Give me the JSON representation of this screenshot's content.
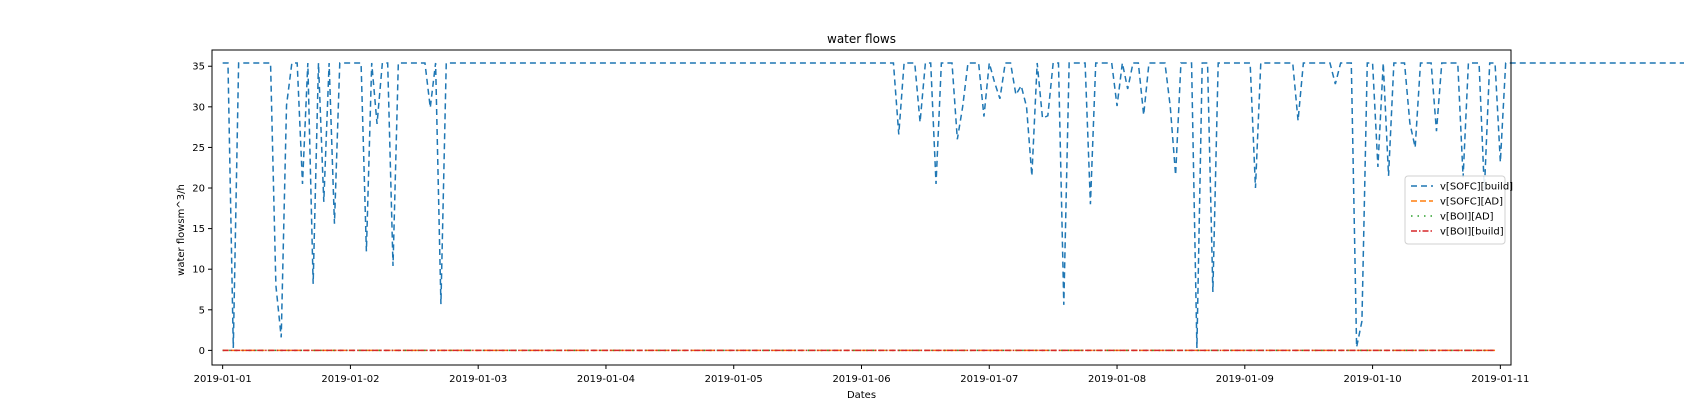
{
  "chart_data": {
    "type": "line",
    "title": "water flows",
    "xlabel": "Dates",
    "ylabel": "water flowsm^3/h",
    "xlim": [
      "2018-12-31T22:00",
      "2019-01-11T02:00"
    ],
    "ylim": [
      -1.8,
      37.0
    ],
    "x_ticks": [
      "2019-01-01",
      "2019-01-02",
      "2019-01-03",
      "2019-01-04",
      "2019-01-05",
      "2019-01-06",
      "2019-01-07",
      "2019-01-08",
      "2019-01-09",
      "2019-01-10",
      "2019-01-11"
    ],
    "y_ticks": [
      0,
      5,
      10,
      15,
      20,
      25,
      30,
      35
    ],
    "grid": false,
    "legend_position": "center right",
    "series": [
      {
        "name": "v[SOFC][build]",
        "color": "#1f77b4",
        "dash": "6,4",
        "x_start": "2019-01-01T00:00",
        "x_step_hours": 1,
        "values": [
          35.4,
          35.4,
          0.3,
          35.4,
          35.4,
          35.4,
          35.4,
          35.4,
          35.4,
          35.4,
          8.0,
          1.6,
          30.2,
          35.4,
          35.4,
          20.5,
          35.4,
          8.2,
          35.4,
          18.3,
          35.4,
          15.6,
          35.4,
          35.4,
          35.4,
          35.4,
          35.4,
          12.2,
          35.4,
          27.9,
          35.4,
          35.4,
          10.4,
          35.4,
          35.4,
          35.4,
          35.4,
          35.4,
          35.4,
          29.9,
          35.4,
          5.7,
          35.4,
          35.4,
          35.4,
          35.4,
          35.4,
          35.4,
          35.4,
          35.4,
          35.4,
          35.4,
          35.4,
          35.4,
          35.4,
          35.4,
          35.4,
          35.4,
          35.4,
          35.4,
          35.4,
          35.4,
          35.4,
          35.4,
          35.4,
          35.4,
          35.4,
          35.4,
          35.4,
          35.4,
          35.4,
          35.4,
          35.4,
          35.4,
          35.4,
          35.4,
          35.4,
          35.4,
          35.4,
          35.4,
          35.4,
          35.4,
          35.4,
          35.4,
          35.4,
          35.4,
          35.4,
          35.4,
          35.4,
          35.4,
          35.4,
          35.4,
          35.4,
          35.4,
          35.4,
          35.4,
          35.4,
          35.4,
          35.4,
          35.4,
          35.4,
          35.4,
          35.4,
          35.4,
          35.4,
          35.4,
          35.4,
          35.4,
          35.4,
          35.4,
          35.4,
          35.4,
          35.4,
          35.4,
          35.4,
          35.4,
          35.4,
          35.4,
          35.4,
          35.4,
          35.4,
          35.4,
          35.4,
          35.4,
          35.4,
          35.4,
          35.4,
          26.6,
          35.4,
          35.4,
          35.4,
          28.1,
          35.4,
          35.4,
          20.5,
          35.4,
          35.4,
          35.4,
          26.0,
          30.0,
          35.4,
          35.4,
          35.4,
          28.8,
          35.4,
          33.0,
          31.0,
          35.4,
          35.4,
          31.5,
          32.6,
          30.0,
          21.5,
          35.4,
          28.6,
          28.9,
          35.4,
          35.4,
          5.6,
          35.4,
          35.4,
          35.4,
          35.4,
          18.0,
          35.4,
          35.4,
          35.4,
          35.4,
          30.1,
          35.4,
          32.2,
          35.4,
          35.4,
          29.0,
          35.4,
          35.4,
          35.4,
          35.4,
          30.0,
          21.6,
          35.4,
          35.4,
          35.4,
          0.3,
          35.4,
          35.4,
          7.2,
          35.4,
          35.4,
          35.4,
          35.4,
          35.4,
          35.4,
          35.4,
          20.0,
          35.4,
          35.4,
          35.4,
          35.4,
          35.4,
          35.4,
          35.4,
          28.3,
          35.4,
          35.4,
          35.4,
          35.4,
          35.4,
          35.4,
          32.8,
          35.4,
          35.4,
          35.4,
          0.4,
          3.6,
          35.4,
          35.4,
          22.6,
          35.4,
          21.5,
          35.4,
          35.4,
          35.4,
          28.0,
          25.0,
          35.4,
          35.4,
          35.4,
          27.0,
          35.4,
          35.4,
          35.4,
          35.4,
          21.3,
          35.4,
          35.4,
          35.4,
          19.7,
          35.4,
          35.4,
          23.2,
          35.4,
          35.4,
          35.4,
          35.4,
          35.4,
          35.4,
          35.4,
          35.4,
          35.4,
          35.4,
          35.4,
          35.4,
          35.4,
          35.4,
          35.4,
          35.4,
          35.4,
          35.4,
          35.4,
          35.4,
          35.4,
          35.4,
          35.4,
          35.4,
          35.4,
          35.4,
          35.4,
          35.4,
          35.4,
          35.4,
          35.4,
          35.4,
          35.4,
          35.4,
          35.4,
          35.4,
          35.4,
          35.4,
          35.4,
          35.4,
          35.4,
          35.4,
          35.4,
          35.4,
          35.4,
          35.4,
          35.4,
          35.4,
          35.4,
          35.4,
          35.4,
          35.4,
          35.4,
          35.4,
          35.4,
          35.4,
          35.4,
          35.4,
          35.4,
          35.4,
          35.4,
          35.4,
          35.4,
          35.4,
          35.4,
          35.4,
          35.4,
          35.4,
          35.4,
          35.4,
          35.4,
          35.4,
          35.4,
          35.4,
          35.4,
          35.4,
          35.4,
          35.4,
          35.4,
          35.4,
          35.4,
          35.4,
          35.4,
          35.4,
          35.4,
          35.4,
          33.0,
          35.4,
          35.4,
          35.4,
          35.4,
          35.4,
          35.4,
          35.4,
          35.4,
          35.4,
          35.4,
          35.4,
          35.4,
          35.4,
          35.4,
          35.4,
          35.4,
          35.4
        ]
      },
      {
        "name": "v[SOFC][AD]",
        "color": "#ff7f0e",
        "dash": "6,3",
        "x": [
          "2019-01-01T00:00",
          "2019-01-10T23:00"
        ],
        "values": [
          0,
          0
        ]
      },
      {
        "name": "v[BOI][AD]",
        "color": "#2ca02c",
        "dash": "1.5,5",
        "x": [
          "2019-01-01T00:00",
          "2019-01-10T23:00"
        ],
        "values": [
          0,
          0
        ]
      },
      {
        "name": "v[BOI][build]",
        "color": "#d62728",
        "dash": "6,2,1.5,2",
        "x": [
          "2019-01-01T00:00",
          "2019-01-10T23:00"
        ],
        "values": [
          0,
          0
        ]
      }
    ]
  }
}
